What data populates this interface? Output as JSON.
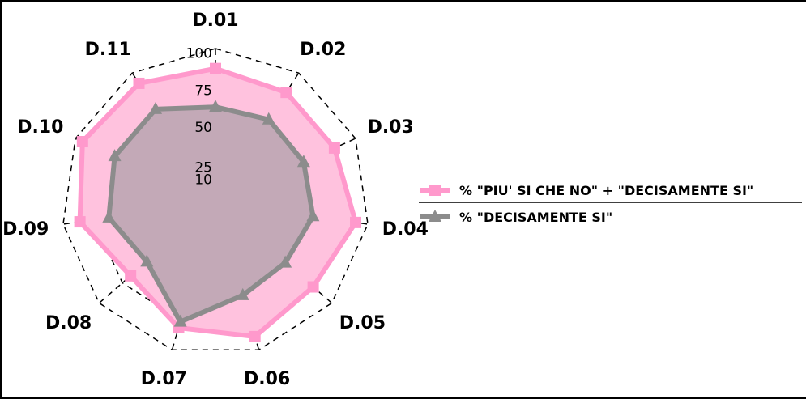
{
  "chart_data": {
    "type": "radar",
    "categories": [
      "D.01",
      "D.02",
      "D.03",
      "D.04",
      "D.05",
      "D.06",
      "D.07",
      "D.08",
      "D.09",
      "D.10",
      "D.11"
    ],
    "series": [
      {
        "name": "% \"PIU' SI CHE NO\" + \"DECISAMENTE SI\"",
        "values": [
          87,
          85,
          85,
          92,
          84,
          91,
          85,
          73,
          89,
          95,
          92
        ],
        "color": "#ff99cc",
        "fill": "#ffc2de",
        "marker": "square"
      },
      {
        "name": "% \"DECISAMENTE SI\"",
        "values": [
          62,
          64,
          63,
          64,
          60,
          63,
          81,
          59,
          70,
          72,
          72
        ],
        "color": "#8c8c8c",
        "fill": "#b9a5b0",
        "marker": "triangle"
      }
    ],
    "rlim": [
      0,
      100
    ],
    "ticks": [
      10,
      25,
      50,
      75,
      100
    ],
    "tick_labels": [
      "10",
      "25",
      "50",
      "75",
      "100"
    ],
    "grid": true,
    "legend_position": "right"
  }
}
